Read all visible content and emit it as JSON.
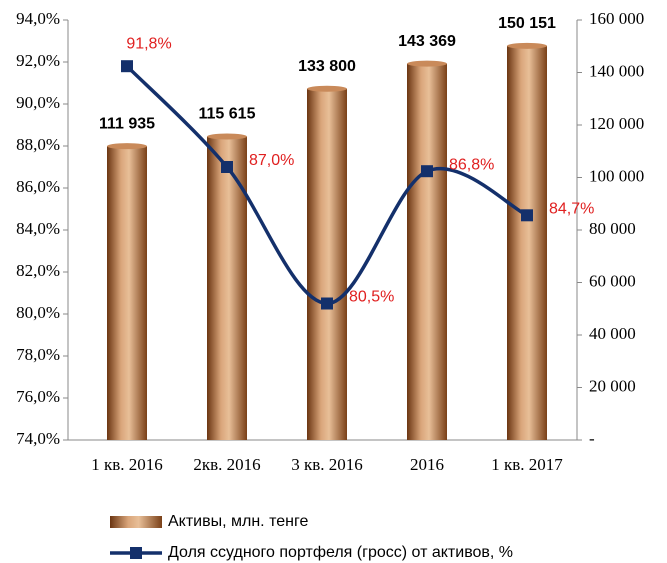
{
  "chart_data": {
    "type": "bar_line",
    "categories": [
      "1 кв. 2016",
      "2кв. 2016",
      "3 кв. 2016",
      "2016",
      "1 кв. 2017"
    ],
    "series": [
      {
        "name": "Активы, млн. тенге",
        "type": "bar",
        "axis": "y2",
        "color": "#b8703a",
        "values": [
          111935,
          115615,
          133800,
          143369,
          150151
        ],
        "value_labels": [
          "111 935",
          "115 615",
          "133 800",
          "143 369",
          "150 151"
        ]
      },
      {
        "name": "Доля ссудного портфеля (гросс) от активов, %",
        "type": "line",
        "axis": "y",
        "color": "#14306b",
        "values": [
          91.8,
          87.0,
          80.5,
          86.8,
          84.7
        ],
        "value_labels": [
          "91,8%",
          "87,0%",
          "80,5%",
          "86,8%",
          "84,7%"
        ]
      }
    ],
    "ylim": [
      74,
      94
    ],
    "yticks": [
      {
        "value": 74,
        "label": "74,0%"
      },
      {
        "value": 76,
        "label": "76,0%"
      },
      {
        "value": 78,
        "label": "78,0%"
      },
      {
        "value": 80,
        "label": "80,0%"
      },
      {
        "value": 82,
        "label": "82,0%"
      },
      {
        "value": 84,
        "label": "84,0%"
      },
      {
        "value": 86,
        "label": "86,0%"
      },
      {
        "value": 88,
        "label": "88,0%"
      },
      {
        "value": 90,
        "label": "90,0%"
      },
      {
        "value": 92,
        "label": "92,0%"
      },
      {
        "value": 94,
        "label": "94,0%"
      }
    ],
    "y2lim": [
      0,
      160000
    ],
    "y2ticks": [
      {
        "value": 0,
        "label": "-"
      },
      {
        "value": 20000,
        "label": "20 000"
      },
      {
        "value": 40000,
        "label": "40 000"
      },
      {
        "value": 60000,
        "label": "60 000"
      },
      {
        "value": 80000,
        "label": "80 000"
      },
      {
        "value": 100000,
        "label": "100 000"
      },
      {
        "value": 120000,
        "label": "120 000"
      },
      {
        "value": 140000,
        "label": "140 000"
      },
      {
        "value": 160000,
        "label": "160 000"
      }
    ]
  }
}
